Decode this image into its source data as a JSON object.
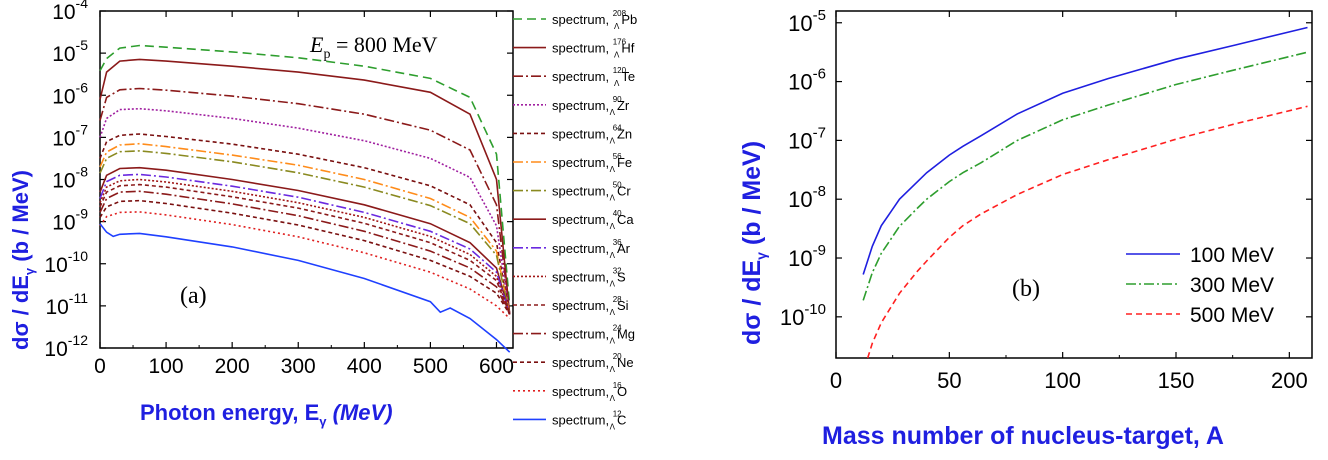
{
  "chart_data": [
    {
      "type": "line",
      "panel_label": "(a)",
      "annotation": {
        "main": "E",
        "sub": "p",
        "rest": " = 800 MeV"
      },
      "xlabel": {
        "main": "Photon energy, E",
        "sub": "γ",
        "unit": " (MeV)"
      },
      "ylabel": {
        "main": "dσ / dE",
        "sub": "γ",
        "unit": " (b / MeV)"
      },
      "xlim": [
        0,
        625
      ],
      "ylim_log10": [
        -12,
        -4
      ],
      "xticks": [
        "0",
        "100",
        "200",
        "300",
        "400",
        "500",
        "600"
      ],
      "xtick_values": [
        0,
        100,
        200,
        300,
        400,
        500,
        600
      ],
      "yticks": [
        {
          "base": "10",
          "exp": "-12"
        },
        {
          "base": "10",
          "exp": "-11"
        },
        {
          "base": "10",
          "exp": "-10"
        },
        {
          "base": "10",
          "exp": "-9"
        },
        {
          "base": "10",
          "exp": "-8"
        },
        {
          "base": "10",
          "exp": "-7"
        },
        {
          "base": "10",
          "exp": "-6"
        },
        {
          "base": "10",
          "exp": "-5"
        },
        {
          "base": "10",
          "exp": "-4"
        }
      ],
      "legend_prefix": "spectrum, ",
      "series": [
        {
          "name": "spectrum, 208ΛPb",
          "mass": "208",
          "element": "Pb",
          "color": "#2e9e2e",
          "dash": "9,5",
          "x": [
            0,
            10,
            30,
            60,
            100,
            200,
            300,
            400,
            500,
            560,
            600,
            620
          ],
          "y": [
            -5.42,
            -5.13,
            -4.88,
            -4.82,
            -4.86,
            -4.97,
            -5.11,
            -5.31,
            -5.6,
            -6.05,
            -7.4,
            -11.0
          ]
        },
        {
          "name": "spectrum, 176ΛHf",
          "mass": "176",
          "element": "Hf",
          "color": "#8b1a1a",
          "dash": "",
          "x": [
            0,
            10,
            30,
            60,
            100,
            200,
            300,
            400,
            500,
            560,
            600,
            620
          ],
          "y": [
            -6.1,
            -5.45,
            -5.19,
            -5.15,
            -5.19,
            -5.31,
            -5.45,
            -5.64,
            -5.93,
            -6.45,
            -8.0,
            -11.2
          ]
        },
        {
          "name": "spectrum, 120ΛTe",
          "mass": "120",
          "element": "Te",
          "color": "#8b1a1a",
          "dash": "10,3,2,3",
          "x": [
            0,
            10,
            30,
            60,
            100,
            200,
            300,
            400,
            500,
            560,
            600,
            620
          ],
          "y": [
            -6.6,
            -6.05,
            -5.87,
            -5.84,
            -5.88,
            -6.02,
            -6.2,
            -6.45,
            -6.83,
            -7.3,
            -8.6,
            -11.2
          ]
        },
        {
          "name": "spectrum, 90ΛZr",
          "mass": "90",
          "element": "Zr",
          "color": "#a020a0",
          "dash": "2,2",
          "x": [
            0,
            10,
            30,
            60,
            100,
            200,
            300,
            400,
            500,
            560,
            600,
            620
          ],
          "y": [
            -7.0,
            -6.55,
            -6.34,
            -6.32,
            -6.37,
            -6.55,
            -6.78,
            -7.08,
            -7.5,
            -7.95,
            -9.1,
            -11.2
          ]
        },
        {
          "name": "spectrum, 64ΛZn",
          "mass": "64",
          "element": "Zn",
          "color": "#7a1010",
          "dash": "4,3",
          "x": [
            0,
            10,
            30,
            60,
            100,
            200,
            300,
            400,
            500,
            560,
            600,
            620
          ],
          "y": [
            -7.5,
            -7.1,
            -6.95,
            -6.92,
            -6.98,
            -7.16,
            -7.4,
            -7.72,
            -8.15,
            -8.6,
            -9.5,
            -11.2
          ]
        },
        {
          "name": "spectrum, 56ΛFe",
          "mass": "56",
          "element": "Fe",
          "color": "#ff8c1a",
          "dash": "10,3,2,3",
          "x": [
            0,
            10,
            30,
            60,
            100,
            200,
            300,
            400,
            500,
            560,
            600,
            620
          ],
          "y": [
            -7.7,
            -7.35,
            -7.18,
            -7.15,
            -7.22,
            -7.42,
            -7.66,
            -8.0,
            -8.45,
            -8.9,
            -9.7,
            -11.2
          ]
        },
        {
          "name": "spectrum, 50ΛCr",
          "mass": "50",
          "element": "Cr",
          "color": "#8a8a20",
          "dash": "10,3,2,3",
          "x": [
            0,
            10,
            30,
            60,
            100,
            200,
            300,
            400,
            500,
            560,
            600,
            620
          ],
          "y": [
            -7.85,
            -7.5,
            -7.34,
            -7.32,
            -7.38,
            -7.58,
            -7.84,
            -8.18,
            -8.62,
            -9.05,
            -9.8,
            -11.2
          ]
        },
        {
          "name": "spectrum, 40ΛCa",
          "mass": "40",
          "element": "Ca",
          "color": "#8b1a1a",
          "dash": "",
          "x": [
            0,
            10,
            30,
            60,
            100,
            200,
            300,
            400,
            500,
            560,
            600,
            620
          ],
          "y": [
            -8.3,
            -7.9,
            -7.74,
            -7.72,
            -7.78,
            -8.0,
            -8.26,
            -8.6,
            -9.05,
            -9.5,
            -10.1,
            -11.2
          ]
        },
        {
          "name": "spectrum, 36ΛAr",
          "mass": "36",
          "element": "Ar",
          "color": "#6a2ae0",
          "dash": "10,3,2,3",
          "x": [
            0,
            10,
            30,
            60,
            100,
            200,
            300,
            400,
            500,
            560,
            600,
            620
          ],
          "y": [
            -8.45,
            -8.05,
            -7.9,
            -7.88,
            -7.94,
            -8.16,
            -8.42,
            -8.78,
            -9.23,
            -9.65,
            -10.2,
            -11.2
          ]
        },
        {
          "name": "spectrum, 32ΛS",
          "mass": "32",
          "element": "S",
          "color": "#a01515",
          "dash": "2,2",
          "x": [
            0,
            10,
            30,
            60,
            100,
            200,
            300,
            400,
            500,
            560,
            600,
            620
          ],
          "y": [
            -8.55,
            -8.18,
            -8.03,
            -8.0,
            -8.06,
            -8.28,
            -8.55,
            -8.9,
            -9.35,
            -9.78,
            -10.3,
            -11.2
          ]
        },
        {
          "name": "spectrum, 28ΛSi",
          "mass": "28",
          "element": "Si",
          "color": "#8b1a1a",
          "dash": "4,3",
          "x": [
            0,
            10,
            30,
            60,
            100,
            200,
            300,
            400,
            500,
            560,
            600,
            620
          ],
          "y": [
            -8.65,
            -8.3,
            -8.15,
            -8.12,
            -8.18,
            -8.41,
            -8.68,
            -9.04,
            -9.5,
            -9.92,
            -10.4,
            -11.2
          ]
        },
        {
          "name": "spectrum, 24ΛMg",
          "mass": "24",
          "element": "Mg",
          "color": "#8b1a1a",
          "dash": "10,3,2,3",
          "x": [
            0,
            10,
            30,
            60,
            100,
            200,
            300,
            400,
            500,
            560,
            600,
            620
          ],
          "y": [
            -8.78,
            -8.45,
            -8.3,
            -8.28,
            -8.35,
            -8.58,
            -8.86,
            -9.23,
            -9.7,
            -10.1,
            -10.55,
            -11.2
          ]
        },
        {
          "name": "spectrum, 20ΛNe",
          "mass": "20",
          "element": "Ne",
          "color": "#7a1010",
          "dash": "4,3",
          "x": [
            0,
            10,
            30,
            60,
            100,
            200,
            300,
            400,
            500,
            560,
            600,
            620
          ],
          "y": [
            -8.9,
            -8.65,
            -8.52,
            -8.5,
            -8.57,
            -8.8,
            -9.08,
            -9.45,
            -9.92,
            -10.3,
            -10.7,
            -11.2
          ]
        },
        {
          "name": "spectrum, 16ΛO",
          "mass": "16",
          "element": "O",
          "color": "#e02020",
          "dash": "2,3",
          "x": [
            0,
            10,
            30,
            60,
            100,
            200,
            300,
            400,
            500,
            560,
            600,
            620
          ],
          "y": [
            -9.1,
            -8.88,
            -8.78,
            -8.77,
            -8.84,
            -9.07,
            -9.36,
            -9.74,
            -10.2,
            -10.6,
            -11.0,
            -11.3
          ]
        },
        {
          "name": "spectrum, 12ΛC",
          "mass": "12",
          "element": "C",
          "color": "#1f40ff",
          "dash": "",
          "x": [
            0,
            10,
            20,
            30,
            60,
            100,
            200,
            300,
            400,
            500,
            515,
            530,
            560,
            600,
            620
          ],
          "y": [
            -9.05,
            -9.25,
            -9.35,
            -9.3,
            -9.28,
            -9.36,
            -9.6,
            -9.92,
            -10.35,
            -10.9,
            -11.15,
            -11.05,
            -11.3,
            -11.8,
            -12.1
          ]
        }
      ]
    },
    {
      "type": "line",
      "panel_label": "(b)",
      "xlabel": "Mass number of nucleus-target, A",
      "ylabel": {
        "main": "dσ / dE",
        "sub": "γ",
        "unit": " (b / MeV)"
      },
      "xlim": [
        0,
        210
      ],
      "ylim_log10": [
        -10.7,
        -4.8
      ],
      "xticks": [
        "0",
        "50",
        "100",
        "150",
        "200"
      ],
      "xtick_values": [
        0,
        50,
        100,
        150,
        200
      ],
      "yticks": [
        {
          "base": "10",
          "exp": "-10",
          "value": -10
        },
        {
          "base": "10",
          "exp": "-9",
          "value": -9
        },
        {
          "base": "10",
          "exp": "-8",
          "value": -8
        },
        {
          "base": "10",
          "exp": "-7",
          "value": -7
        },
        {
          "base": "10",
          "exp": "-6",
          "value": -6
        },
        {
          "base": "10",
          "exp": "-5",
          "value": -5
        }
      ],
      "series": [
        {
          "name": "100 MeV",
          "color": "#1f1fe0",
          "dash": "",
          "x": [
            12,
            16,
            20,
            28,
            36,
            40,
            50,
            56,
            64,
            80,
            100,
            120,
            150,
            176,
            208
          ],
          "y": [
            -9.28,
            -8.8,
            -8.45,
            -8.0,
            -7.7,
            -7.55,
            -7.25,
            -7.1,
            -6.92,
            -6.55,
            -6.2,
            -5.95,
            -5.62,
            -5.38,
            -5.08
          ]
        },
        {
          "name": "300 MeV",
          "color": "#2e9e2e",
          "dash": "10,3,2,3",
          "x": [
            12,
            16,
            20,
            28,
            36,
            40,
            50,
            56,
            64,
            80,
            100,
            120,
            150,
            176,
            208
          ],
          "y": [
            -9.72,
            -9.25,
            -8.92,
            -8.46,
            -8.15,
            -8.0,
            -7.7,
            -7.55,
            -7.38,
            -7.0,
            -6.65,
            -6.4,
            -6.05,
            -5.8,
            -5.5
          ]
        },
        {
          "name": "500 MeV",
          "color": "#ff2020",
          "dash": "6,4",
          "x": [
            14,
            16,
            20,
            28,
            36,
            40,
            50,
            56,
            64,
            80,
            100,
            120,
            150,
            176,
            208
          ],
          "y": [
            -10.7,
            -10.45,
            -10.1,
            -9.6,
            -9.22,
            -9.05,
            -8.65,
            -8.45,
            -8.25,
            -7.92,
            -7.58,
            -7.33,
            -6.98,
            -6.72,
            -6.42
          ]
        }
      ]
    }
  ]
}
